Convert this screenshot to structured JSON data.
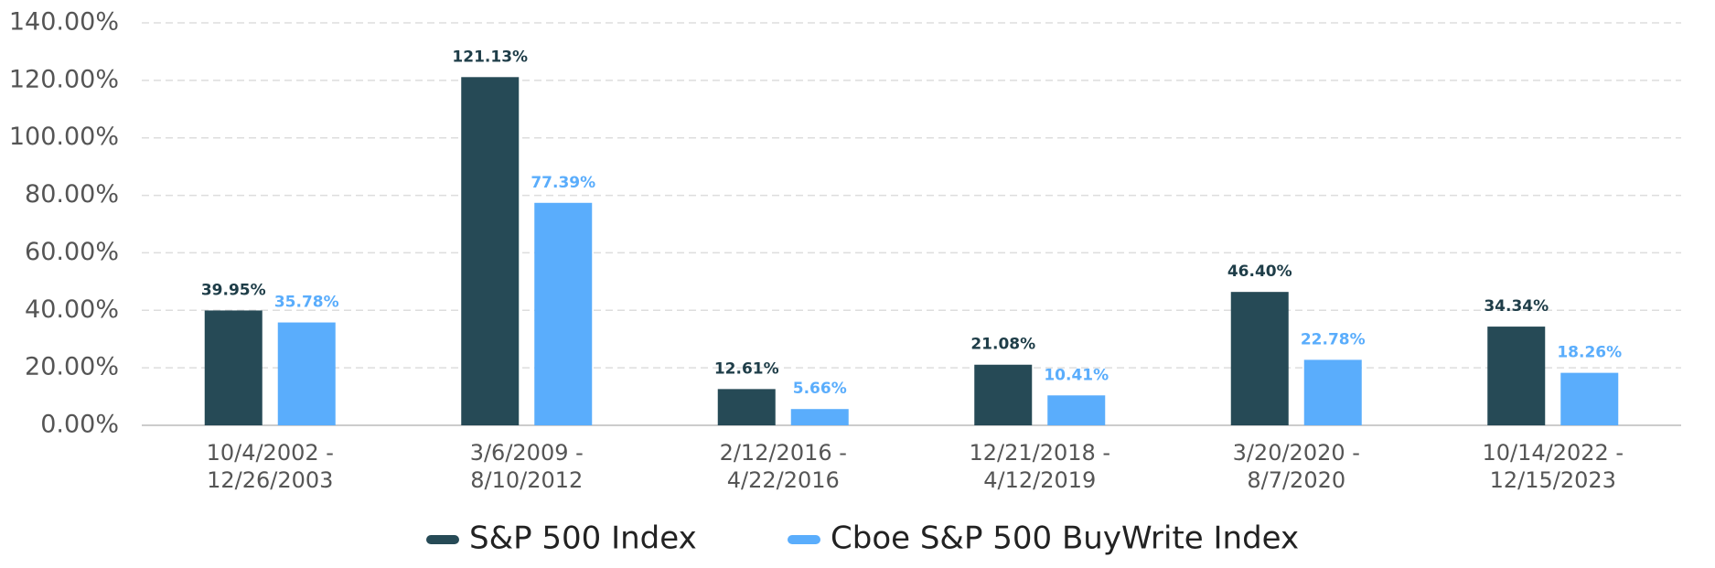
{
  "chart_data": {
    "type": "bar",
    "categories": [
      "10/4/2002 -\n12/26/2003",
      "3/6/2009 -\n8/10/2012",
      "2/12/2016 -\n4/22/2016",
      "12/21/2018 -\n4/12/2019",
      "3/20/2020 -\n8/7/2020",
      "10/14/2022 -\n12/15/2023"
    ],
    "series": [
      {
        "name": "S&P 500 Index",
        "color": "#264a56",
        "values": [
          39.95,
          121.13,
          12.61,
          21.08,
          46.4,
          34.34
        ],
        "value_labels": [
          "39.95%",
          "121.13%",
          "12.61%",
          "21.08%",
          "46.40%",
          "34.34%"
        ]
      },
      {
        "name": "Cboe S&P 500 BuyWrite Index",
        "color": "#5aadfc",
        "values": [
          35.78,
          77.39,
          5.66,
          10.41,
          22.78,
          18.26
        ],
        "value_labels": [
          "35.78%",
          "77.39%",
          "5.66%",
          "10.41%",
          "22.78%",
          "18.26%"
        ]
      }
    ],
    "ylim": [
      0,
      140
    ],
    "yticks": [
      {
        "value": 0,
        "label": "0.00%"
      },
      {
        "value": 20,
        "label": "20.00%"
      },
      {
        "value": 40,
        "label": "40.00%"
      },
      {
        "value": 60,
        "label": "60.00%"
      },
      {
        "value": 80,
        "label": "80.00%"
      },
      {
        "value": 100,
        "label": "100.00%"
      },
      {
        "value": 120,
        "label": "120.00%"
      },
      {
        "value": 140,
        "label": "140.00%"
      }
    ],
    "grid": true,
    "legend": "bottom"
  }
}
